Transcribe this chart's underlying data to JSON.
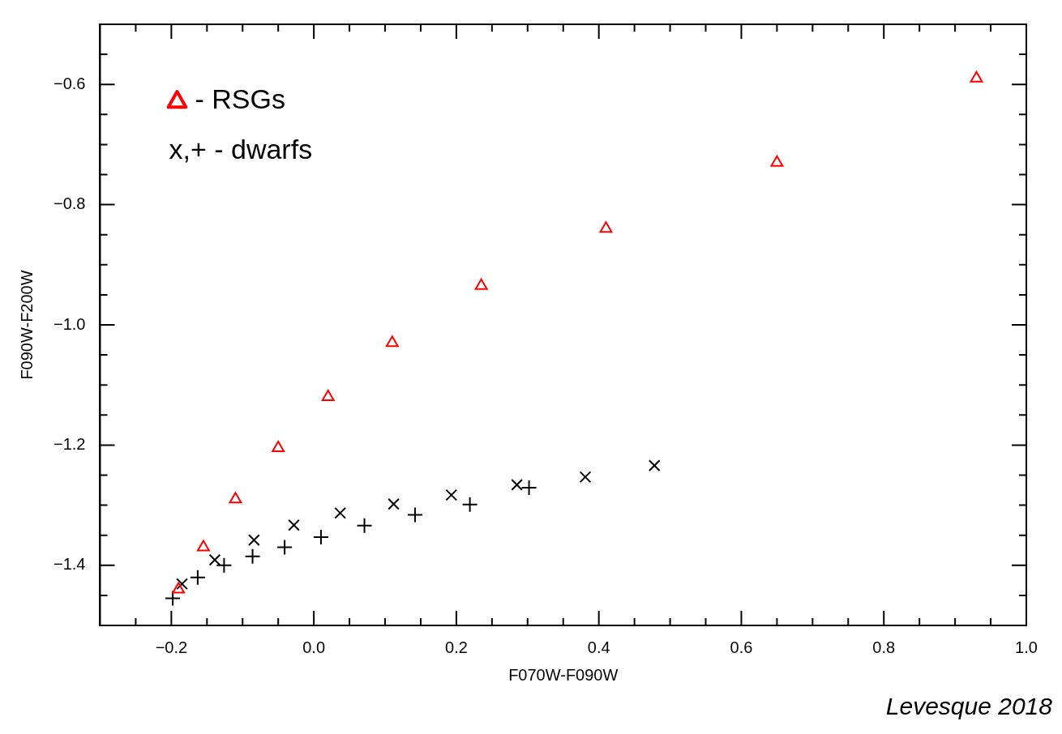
{
  "chart_data": {
    "type": "scatter",
    "xlabel": "F070W-F090W",
    "ylabel": "F090W-F200W",
    "xlim": [
      -0.3,
      1.0
    ],
    "ylim": [
      -1.5,
      -0.5
    ],
    "xticks": [
      {
        "value": -0.25,
        "label": null
      },
      {
        "value": -0.2,
        "label": "−0.2"
      },
      {
        "value": -0.15,
        "label": null
      },
      {
        "value": -0.1,
        "label": null
      },
      {
        "value": -0.05,
        "label": null
      },
      {
        "value": 0,
        "label": "0.0"
      },
      {
        "value": 0.05,
        "label": null
      },
      {
        "value": 0.1,
        "label": null
      },
      {
        "value": 0.15,
        "label": null
      },
      {
        "value": 0.2,
        "label": "0.2"
      },
      {
        "value": 0.25,
        "label": null
      },
      {
        "value": 0.3,
        "label": null
      },
      {
        "value": 0.35,
        "label": null
      },
      {
        "value": 0.4,
        "label": "0.4"
      },
      {
        "value": 0.45,
        "label": null
      },
      {
        "value": 0.5,
        "label": null
      },
      {
        "value": 0.55,
        "label": null
      },
      {
        "value": 0.6,
        "label": "0.6"
      },
      {
        "value": 0.65,
        "label": null
      },
      {
        "value": 0.7,
        "label": null
      },
      {
        "value": 0.75,
        "label": null
      },
      {
        "value": 0.8,
        "label": "0.8"
      },
      {
        "value": 0.85,
        "label": null
      },
      {
        "value": 0.9,
        "label": null
      },
      {
        "value": 0.95,
        "label": null
      },
      {
        "value": 1.0,
        "label": "1.0"
      }
    ],
    "yticks": [
      {
        "value": -1.45,
        "label": null
      },
      {
        "value": -1.4,
        "label": "−1.4"
      },
      {
        "value": -1.35,
        "label": null
      },
      {
        "value": -1.3,
        "label": null
      },
      {
        "value": -1.25,
        "label": null
      },
      {
        "value": -1.2,
        "label": "−1.2"
      },
      {
        "value": -1.15,
        "label": null
      },
      {
        "value": -1.1,
        "label": null
      },
      {
        "value": -1.05,
        "label": null
      },
      {
        "value": -1.0,
        "label": "−1.0"
      },
      {
        "value": -0.95,
        "label": null
      },
      {
        "value": -0.9,
        "label": null
      },
      {
        "value": -0.85,
        "label": null
      },
      {
        "value": -0.8,
        "label": "−0.8"
      },
      {
        "value": -0.75,
        "label": null
      },
      {
        "value": -0.7,
        "label": null
      },
      {
        "value": -0.65,
        "label": null
      },
      {
        "value": -0.6,
        "label": "−0.6"
      },
      {
        "value": -0.55,
        "label": null
      }
    ],
    "legend": "top left",
    "series": [
      {
        "name": "- RSGs",
        "color": "#ff0000",
        "marker": "triangle",
        "x": [
          0.93,
          0.65,
          0.41,
          0.235,
          0.11,
          0.02,
          -0.05,
          -0.11,
          -0.155,
          -0.19
        ],
        "values": [
          -0.59,
          -0.73,
          -0.84,
          -0.935,
          -1.03,
          -1.12,
          -1.205,
          -1.29,
          -1.37,
          -1.44
        ]
      },
      {
        "color": "#000000",
        "marker": "x",
        "x": [
          -0.185,
          -0.139,
          -0.084,
          -0.028,
          0.037,
          0.112,
          0.193,
          0.285,
          0.381,
          0.478
        ],
        "values": [
          -1.431,
          -1.391,
          -1.358,
          -1.333,
          -1.313,
          -1.298,
          -1.283,
          -1.266,
          -1.253,
          -1.234
        ]
      },
      {
        "color": "#000000",
        "marker": "cross",
        "x": [
          -0.198,
          -0.163,
          -0.126,
          -0.086,
          -0.041,
          0.01,
          0.071,
          0.142,
          0.219,
          0.302
        ],
        "values": [
          -1.455,
          -1.42,
          -1.4,
          -1.385,
          -1.37,
          -1.353,
          -1.334,
          -1.316,
          -1.299,
          -1.271
        ]
      }
    ],
    "annotations": [
      "x,+ - dwarfs",
      "Levesque 2018"
    ]
  }
}
